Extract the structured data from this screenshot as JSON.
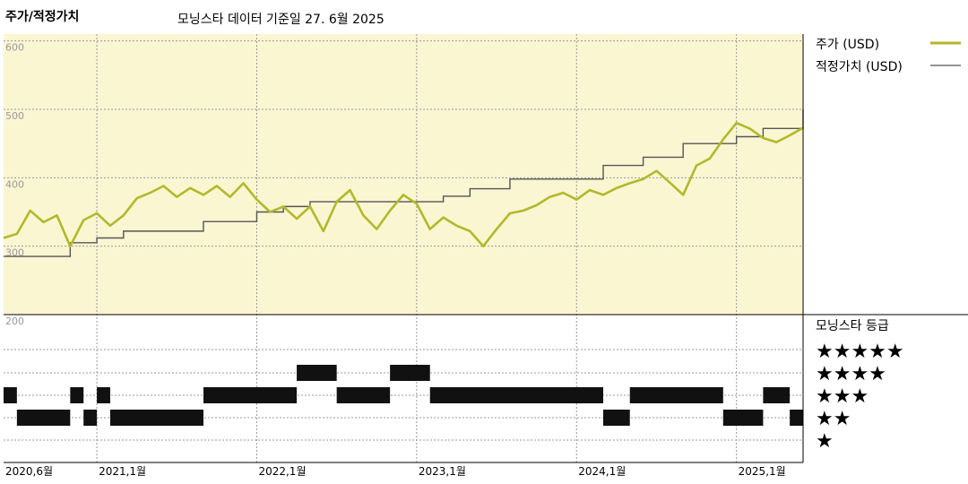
{
  "header": {
    "title": "주가/적정가치",
    "subtitle": "모닝스타 데이터 기준일 27. 6월 2025"
  },
  "colors": {
    "price_line": "#b3b82a",
    "fair_value_line": "#555555",
    "upper_background": "#faf6d2",
    "grid": "#999999"
  },
  "legend": {
    "price_label": "주가 (USD)",
    "fair_value_label": "적정가치 (USD)",
    "rating_title": "모닝스타 등급",
    "stars": [
      "★★★★★",
      "★★★★",
      "★★★",
      "★★",
      "★"
    ]
  },
  "chart_data": [
    {
      "type": "line",
      "title": "주가/적정가치",
      "ylim": [
        200,
        610
      ],
      "yticks": [
        600,
        500,
        400,
        300,
        200
      ],
      "x_range": [
        "2020-06",
        "2025-06"
      ],
      "xticks": [
        "2020,6월",
        "2021,1월",
        "2022,1월",
        "2023,1월",
        "2024,1월",
        "2025,1월"
      ],
      "grid": true,
      "legend_position": "right",
      "series": [
        {
          "name": "주가 (USD)",
          "points": [
            [
              "2020-06",
              312
            ],
            [
              "2020-07",
              318
            ],
            [
              "2020-08",
              352
            ],
            [
              "2020-09",
              335
            ],
            [
              "2020-10",
              345
            ],
            [
              "2020-11",
              300
            ],
            [
              "2020-12",
              338
            ],
            [
              "2021-01",
              348
            ],
            [
              "2021-02",
              330
            ],
            [
              "2021-03",
              345
            ],
            [
              "2021-04",
              370
            ],
            [
              "2021-05",
              378
            ],
            [
              "2021-06",
              388
            ],
            [
              "2021-07",
              372
            ],
            [
              "2021-08",
              385
            ],
            [
              "2021-09",
              375
            ],
            [
              "2021-10",
              388
            ],
            [
              "2021-11",
              372
            ],
            [
              "2021-12",
              392
            ],
            [
              "2022-01",
              368
            ],
            [
              "2022-02",
              350
            ],
            [
              "2022-03",
              358
            ],
            [
              "2022-04",
              340
            ],
            [
              "2022-05",
              358
            ],
            [
              "2022-06",
              322
            ],
            [
              "2022-07",
              365
            ],
            [
              "2022-08",
              382
            ],
            [
              "2022-09",
              345
            ],
            [
              "2022-10",
              325
            ],
            [
              "2022-11",
              352
            ],
            [
              "2022-12",
              375
            ],
            [
              "2023-01",
              362
            ],
            [
              "2023-02",
              325
            ],
            [
              "2023-03",
              342
            ],
            [
              "2023-04",
              330
            ],
            [
              "2023-05",
              322
            ],
            [
              "2023-06",
              300
            ],
            [
              "2023-07",
              325
            ],
            [
              "2023-08",
              348
            ],
            [
              "2023-09",
              352
            ],
            [
              "2023-10",
              360
            ],
            [
              "2023-11",
              372
            ],
            [
              "2023-12",
              378
            ],
            [
              "2024-01",
              368
            ],
            [
              "2024-02",
              382
            ],
            [
              "2024-03",
              375
            ],
            [
              "2024-04",
              385
            ],
            [
              "2024-05",
              392
            ],
            [
              "2024-06",
              398
            ],
            [
              "2024-07",
              410
            ],
            [
              "2024-08",
              393
            ],
            [
              "2024-09",
              375
            ],
            [
              "2024-10",
              418
            ],
            [
              "2024-11",
              428
            ],
            [
              "2024-12",
              456
            ],
            [
              "2025-01",
              480
            ],
            [
              "2025-02",
              472
            ],
            [
              "2025-03",
              458
            ],
            [
              "2025-04",
              452
            ],
            [
              "2025-05",
              462
            ],
            [
              "2025-06",
              473
            ]
          ]
        },
        {
          "name": "적정가치 (USD)",
          "points": [
            [
              "2020-06",
              285
            ],
            [
              "2020-11",
              305
            ],
            [
              "2021-01",
              312
            ],
            [
              "2021-03",
              322
            ],
            [
              "2021-09",
              336
            ],
            [
              "2022-01",
              350
            ],
            [
              "2022-03",
              358
            ],
            [
              "2022-05",
              365
            ],
            [
              "2023-01",
              365
            ],
            [
              "2023-03",
              373
            ],
            [
              "2023-05",
              384
            ],
            [
              "2023-08",
              398
            ],
            [
              "2024-01",
              398
            ],
            [
              "2024-03",
              418
            ],
            [
              "2024-06",
              430
            ],
            [
              "2024-09",
              450
            ],
            [
              "2025-01",
              460
            ],
            [
              "2025-03",
              472
            ],
            [
              "2025-06",
              500
            ]
          ]
        }
      ]
    },
    {
      "type": "heatmap",
      "title": "모닝스타 등급",
      "rows": [
        "★★★★★",
        "★★★★",
        "★★★",
        "★★",
        "★"
      ],
      "x_range": [
        "2020-06",
        "2025-06"
      ],
      "periods": [
        {
          "start": "2020-06",
          "end": "2020-07",
          "stars": 3
        },
        {
          "start": "2020-07",
          "end": "2020-11",
          "stars": 2
        },
        {
          "start": "2020-11",
          "end": "2020-12",
          "stars": 3
        },
        {
          "start": "2020-12",
          "end": "2021-01",
          "stars": 2
        },
        {
          "start": "2021-01",
          "end": "2021-02",
          "stars": 3
        },
        {
          "start": "2021-02",
          "end": "2021-09",
          "stars": 2
        },
        {
          "start": "2021-09",
          "end": "2022-04",
          "stars": 3
        },
        {
          "start": "2022-04",
          "end": "2022-07",
          "stars": 4
        },
        {
          "start": "2022-07",
          "end": "2022-11",
          "stars": 3
        },
        {
          "start": "2022-11",
          "end": "2023-02",
          "stars": 4
        },
        {
          "start": "2023-02",
          "end": "2024-03",
          "stars": 3
        },
        {
          "start": "2024-03",
          "end": "2024-05",
          "stars": 2
        },
        {
          "start": "2024-05",
          "end": "2024-12",
          "stars": 3
        },
        {
          "start": "2024-12",
          "end": "2025-03",
          "stars": 2
        },
        {
          "start": "2025-03",
          "end": "2025-05",
          "stars": 3
        },
        {
          "start": "2025-05",
          "end": "2025-06",
          "stars": 2
        }
      ]
    }
  ]
}
